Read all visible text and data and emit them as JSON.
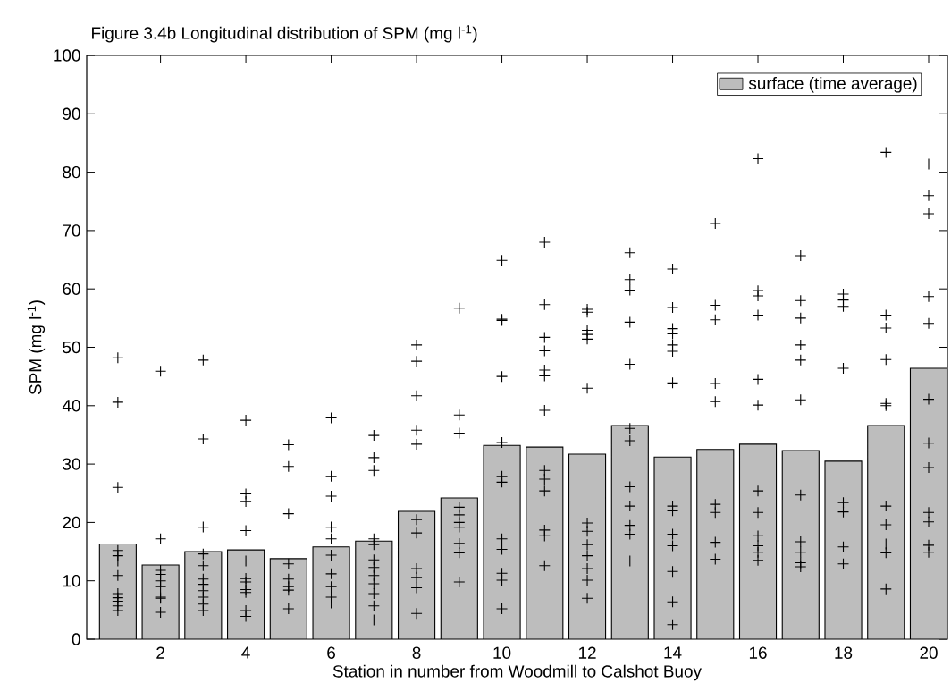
{
  "chart_data": {
    "type": "bar",
    "title": "Figure 3.4b Longitudinal distribution of SPM (mg l$^{-1}$)",
    "xlabel": "Station in number from Woodmill to Calshot Buoy",
    "ylabel": "SPM (mg l$^{-1}$)",
    "x": [
      1,
      2,
      3,
      4,
      5,
      6,
      7,
      8,
      9,
      10,
      11,
      12,
      13,
      14,
      15,
      16,
      17,
      18,
      19,
      20
    ],
    "xlim": [
      0.27,
      20.44
    ],
    "xticks": [
      2,
      4,
      6,
      8,
      10,
      12,
      14,
      16,
      18,
      20
    ],
    "ylim": [
      0,
      100
    ],
    "yticks": [
      0,
      10,
      20,
      30,
      40,
      50,
      60,
      70,
      80,
      90,
      100
    ],
    "legend": "top right",
    "grid": false,
    "series": [
      {
        "name": "surface (time average)",
        "color": "#bdbdbd",
        "values": [
          16.3,
          12.7,
          15.0,
          15.3,
          13.8,
          15.8,
          16.8,
          21.9,
          24.2,
          33.2,
          32.9,
          31.7,
          36.6,
          31.2,
          32.5,
          33.4,
          32.3,
          30.5,
          36.6,
          46.4
        ]
      },
      {
        "type": "scatter",
        "marker": "cross",
        "color": "#000000",
        "x": [
          1,
          1,
          1,
          1,
          1,
          1,
          1,
          1,
          1,
          1,
          1,
          1,
          2,
          2,
          2,
          2,
          2,
          2,
          2,
          2,
          2,
          3,
          3,
          3,
          3,
          3,
          3,
          3,
          3,
          3,
          3,
          3,
          4,
          4,
          4,
          4,
          4,
          4,
          4,
          4,
          4,
          4,
          4,
          5,
          5,
          5,
          5,
          5,
          5,
          5,
          5,
          6,
          6,
          6,
          6,
          6,
          6,
          6,
          6,
          6,
          6,
          7,
          7,
          7,
          7,
          7,
          7,
          7,
          7,
          7,
          7,
          7,
          7,
          8,
          8,
          8,
          8,
          8,
          8,
          8,
          8,
          8,
          8,
          8,
          9,
          9,
          9,
          9,
          9,
          9,
          9,
          9,
          9,
          9,
          10,
          10,
          10,
          10,
          10,
          10,
          10,
          10,
          10,
          10,
          10,
          10,
          11,
          11,
          11,
          11,
          11,
          11,
          11,
          11,
          11,
          11,
          11,
          11,
          11,
          12,
          12,
          12,
          12,
          12,
          12,
          12,
          12,
          12,
          12,
          12,
          12,
          12,
          13,
          13,
          13,
          13,
          13,
          13,
          13,
          13,
          13,
          13,
          13,
          13,
          14,
          14,
          14,
          14,
          14,
          14,
          14,
          14,
          14,
          14,
          14,
          14,
          14,
          14,
          15,
          15,
          15,
          15,
          15,
          15,
          15,
          15,
          15,
          16,
          16,
          16,
          16,
          16,
          16,
          16,
          16,
          16,
          16,
          16,
          16,
          17,
          17,
          17,
          17,
          17,
          17,
          17,
          17,
          17,
          17,
          17,
          18,
          18,
          18,
          18,
          18,
          18,
          18,
          18,
          19,
          19,
          19,
          19,
          19,
          19,
          19,
          19,
          19,
          19,
          19,
          20,
          20,
          20,
          20,
          20,
          20,
          20,
          20,
          20,
          20,
          20,
          20
        ],
        "values": [
          48.2,
          40.6,
          26.0,
          15.2,
          14.3,
          13.4,
          10.9,
          7.8,
          7.1,
          6.5,
          5.7,
          4.9,
          45.9,
          17.2,
          11.8,
          11.1,
          10.0,
          9.0,
          7.2,
          7.0,
          4.6,
          47.8,
          34.3,
          19.2,
          14.6,
          12.6,
          10.3,
          9.4,
          8.3,
          7.2,
          6.0,
          4.9,
          37.5,
          24.9,
          23.6,
          18.6,
          13.4,
          10.4,
          9.8,
          8.5,
          8.0,
          4.9,
          3.9,
          33.3,
          29.6,
          21.5,
          12.9,
          10.3,
          9.0,
          8.4,
          5.2,
          37.9,
          27.9,
          24.5,
          19.2,
          17.2,
          14.4,
          11.2,
          9.0,
          7.2,
          6.2,
          34.9,
          31.1,
          28.9,
          17.2,
          16.2,
          13.6,
          12.3,
          10.9,
          9.5,
          7.8,
          5.7,
          3.3,
          50.4,
          47.6,
          41.7,
          35.8,
          33.4,
          20.5,
          18.2,
          12.1,
          10.6,
          8.8,
          4.4,
          56.7,
          38.4,
          35.3,
          22.6,
          21.3,
          20.0,
          19.2,
          16.4,
          14.8,
          9.8,
          64.9,
          54.8,
          54.6,
          45.0,
          33.7,
          27.9,
          26.9,
          17.2,
          15.4,
          11.3,
          10.1,
          5.2,
          68.0,
          57.3,
          51.7,
          49.4,
          46.1,
          45.1,
          39.2,
          28.9,
          27.4,
          25.4,
          18.7,
          17.7,
          12.6,
          56.5,
          56.0,
          52.9,
          52.2,
          51.4,
          43.0,
          19.9,
          18.5,
          16.2,
          14.3,
          12.1,
          10.1,
          7.0,
          66.2,
          61.6,
          59.8,
          54.3,
          47.1,
          36.1,
          34.0,
          26.1,
          22.8,
          19.5,
          18.0,
          13.4,
          63.4,
          56.8,
          53.2,
          52.3,
          50.4,
          49.3,
          43.9,
          22.8,
          22.0,
          18.0,
          16.0,
          11.6,
          6.4,
          2.5,
          71.2,
          57.2,
          54.7,
          43.8,
          40.7,
          23.1,
          21.7,
          16.6,
          13.7,
          82.3,
          59.7,
          58.8,
          55.5,
          44.5,
          40.1,
          25.4,
          21.7,
          17.7,
          16.0,
          14.9,
          13.5,
          65.7,
          58.0,
          55.0,
          50.4,
          47.8,
          41.0,
          24.7,
          16.7,
          14.9,
          13.1,
          12.4,
          59.1,
          58.1,
          57.0,
          46.4,
          23.4,
          21.8,
          15.8,
          12.9,
          83.4,
          55.5,
          53.3,
          47.9,
          40.4,
          40.0,
          22.8,
          19.6,
          16.3,
          14.8,
          8.6,
          81.4,
          76.0,
          72.9,
          58.7,
          54.1,
          41.1,
          33.6,
          29.4,
          21.7,
          20.1,
          16.1,
          14.9
        ]
      }
    ]
  }
}
